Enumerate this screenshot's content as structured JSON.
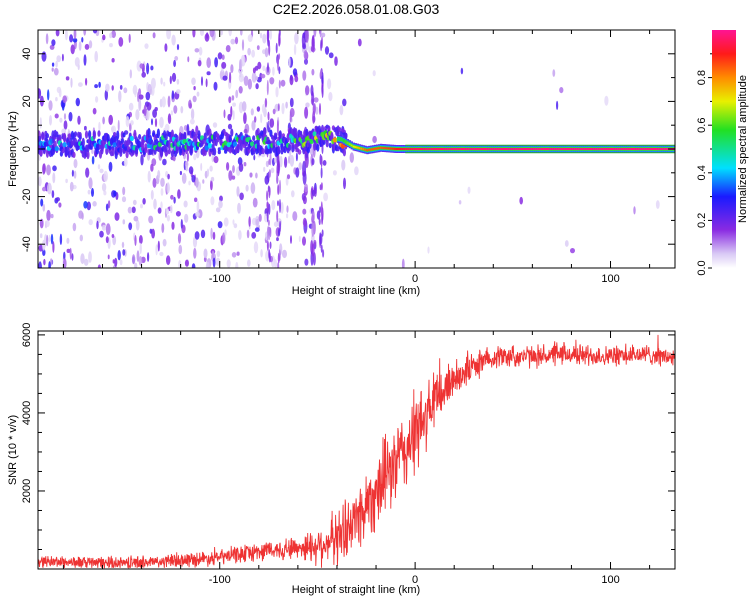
{
  "figure_title": "C2E2.2026.058.01.08.G03",
  "chart_data": [
    {
      "type": "heatmap",
      "name": "spectrogram",
      "xlabel": "Height of straight line (km)",
      "ylabel": "Frequency (Hz)",
      "xlim": [
        -193,
        133
      ],
      "ylim": [
        -50,
        50
      ],
      "xticks": [
        -100,
        0,
        100
      ],
      "xtick_labels": [
        "-100",
        "0",
        "100"
      ],
      "yticks": [
        -40,
        -20,
        0,
        20,
        40
      ],
      "ytick_labels": [
        "-40",
        "-20",
        "0",
        "20",
        "40"
      ],
      "ridge": {
        "description": "main spectral peak frequency vs height",
        "x": [
          -193,
          -150,
          -100,
          -60,
          -45,
          -38,
          -32,
          -25,
          -18,
          -10,
          0,
          20,
          60,
          133
        ],
        "freq": [
          2,
          2,
          3,
          3,
          5,
          4,
          1,
          -0.5,
          0.5,
          0,
          0,
          0,
          0,
          0
        ],
        "amplitude": [
          0.15,
          0.18,
          0.25,
          0.28,
          0.45,
          0.55,
          0.7,
          0.85,
          0.85,
          0.9,
          0.95,
          0.97,
          0.98,
          0.98
        ]
      },
      "colorbar": {
        "label": "Normalized spectral amplitude",
        "range": [
          0,
          1
        ],
        "ticks": [
          0,
          0.2,
          0.4,
          0.6,
          0.8
        ],
        "tick_labels": [
          "0.0",
          "0.2",
          "0.4",
          "0.6",
          "0.8"
        ]
      }
    },
    {
      "type": "line",
      "name": "snr",
      "xlabel": "Height of straight line (km)",
      "ylabel": "SNR (10 * v/v)",
      "xlim": [
        -193,
        133
      ],
      "ylim": [
        0,
        6100
      ],
      "xticks": [
        -100,
        0,
        100
      ],
      "xtick_labels": [
        "-100",
        "0",
        "100"
      ],
      "yticks": [
        2000,
        4000,
        6000
      ],
      "ytick_labels": [
        "2000",
        "4000",
        "6000"
      ],
      "color": "#ee3333",
      "trend": {
        "x": [
          -193,
          -160,
          -130,
          -100,
          -80,
          -60,
          -50,
          -40,
          -30,
          -20,
          -10,
          0,
          10,
          20,
          30,
          40,
          60,
          80,
          100,
          120,
          133
        ],
        "y": [
          200,
          150,
          180,
          300,
          450,
          550,
          600,
          800,
          1300,
          2000,
          2700,
          3400,
          4300,
          4900,
          5200,
          5450,
          5450,
          5500,
          5450,
          5500,
          5400
        ]
      },
      "noise_amplitude": {
        "x": [
          -193,
          -100,
          -60,
          -40,
          -20,
          0,
          20,
          40,
          133
        ],
        "amp": [
          150,
          200,
          300,
          700,
          1000,
          1100,
          500,
          300,
          250
        ]
      }
    }
  ]
}
